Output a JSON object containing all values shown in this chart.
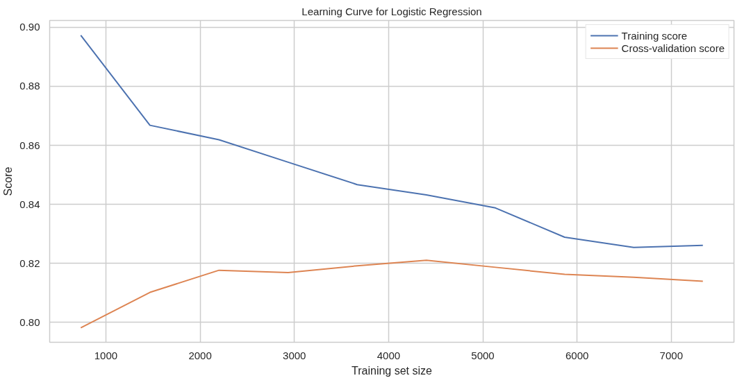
{
  "chart_data": {
    "type": "line",
    "title": "Learning Curve for Logistic Regression",
    "xlabel": "Training set size",
    "ylabel": "Score",
    "x": [
      733,
      1467,
      2200,
      2934,
      3667,
      4401,
      5134,
      5868,
      6601,
      7335
    ],
    "series": [
      {
        "name": "Training score",
        "color": "#4c72b0",
        "values": [
          0.8973,
          0.8668,
          0.8619,
          0.8543,
          0.8467,
          0.8432,
          0.8388,
          0.8289,
          0.8254,
          0.8261
        ]
      },
      {
        "name": "Cross-validation score",
        "color": "#dd8452",
        "values": [
          0.7982,
          0.8102,
          0.8177,
          0.8169,
          0.8192,
          0.8211,
          0.8187,
          0.8163,
          0.8153,
          0.814
        ]
      }
    ],
    "xlim": [
      403,
      7665
    ],
    "ylim": [
      0.7933,
      0.9023
    ],
    "xticks": [
      1000,
      2000,
      3000,
      4000,
      5000,
      6000,
      7000
    ],
    "yticks": [
      {
        "value": 0.8,
        "label": "0.80"
      },
      {
        "value": 0.82,
        "label": "0.82"
      },
      {
        "value": 0.84,
        "label": "0.84"
      },
      {
        "value": 0.86,
        "label": "0.86"
      },
      {
        "value": 0.88,
        "label": "0.88"
      },
      {
        "value": 0.9,
        "label": "0.90"
      }
    ],
    "grid": true,
    "legend": "top right",
    "marker": "none",
    "line_style": "solid"
  }
}
